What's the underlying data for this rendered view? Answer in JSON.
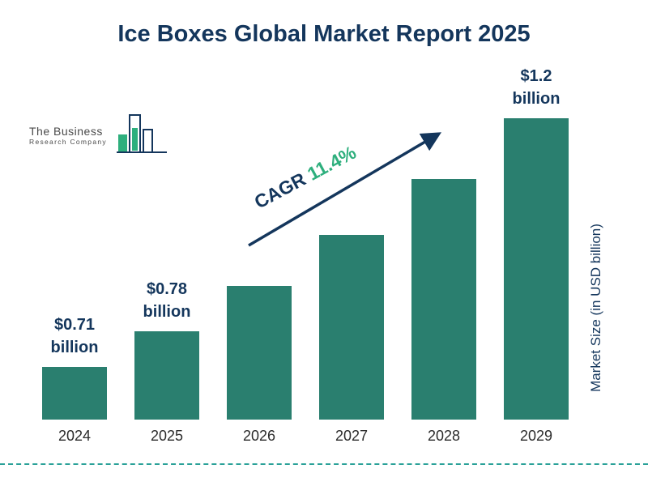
{
  "title": "Ice Boxes Global Market Report 2025",
  "logo": {
    "line1": "The Business",
    "line2": "Research Company"
  },
  "cagr": {
    "prefix": "CAGR ",
    "value": "11.4%"
  },
  "right_axis_label": "Market Size (in USD billion)",
  "colors": {
    "bar": "#2a7f6f",
    "title": "#14365c",
    "cagr_value": "#2eaf7d",
    "arrow": "#14365c",
    "dashed_line": "#2aa198"
  },
  "chart_data": {
    "type": "bar",
    "title": "Ice Boxes Global Market Report 2025",
    "categories": [
      "2024",
      "2025",
      "2026",
      "2027",
      "2028",
      "2029"
    ],
    "values": [
      0.71,
      0.78,
      0.87,
      0.97,
      1.08,
      1.2
    ],
    "value_labels": [
      "$0.71 billion",
      "$0.78 billion",
      "",
      "",
      "",
      "$1.2 billion"
    ],
    "xlabel": "",
    "ylabel": "Market Size (in USD billion)",
    "units": "USD billion",
    "annotation": "CAGR 11.4%",
    "legend": false,
    "grid": false,
    "bar_color": "#2a7f6f"
  }
}
